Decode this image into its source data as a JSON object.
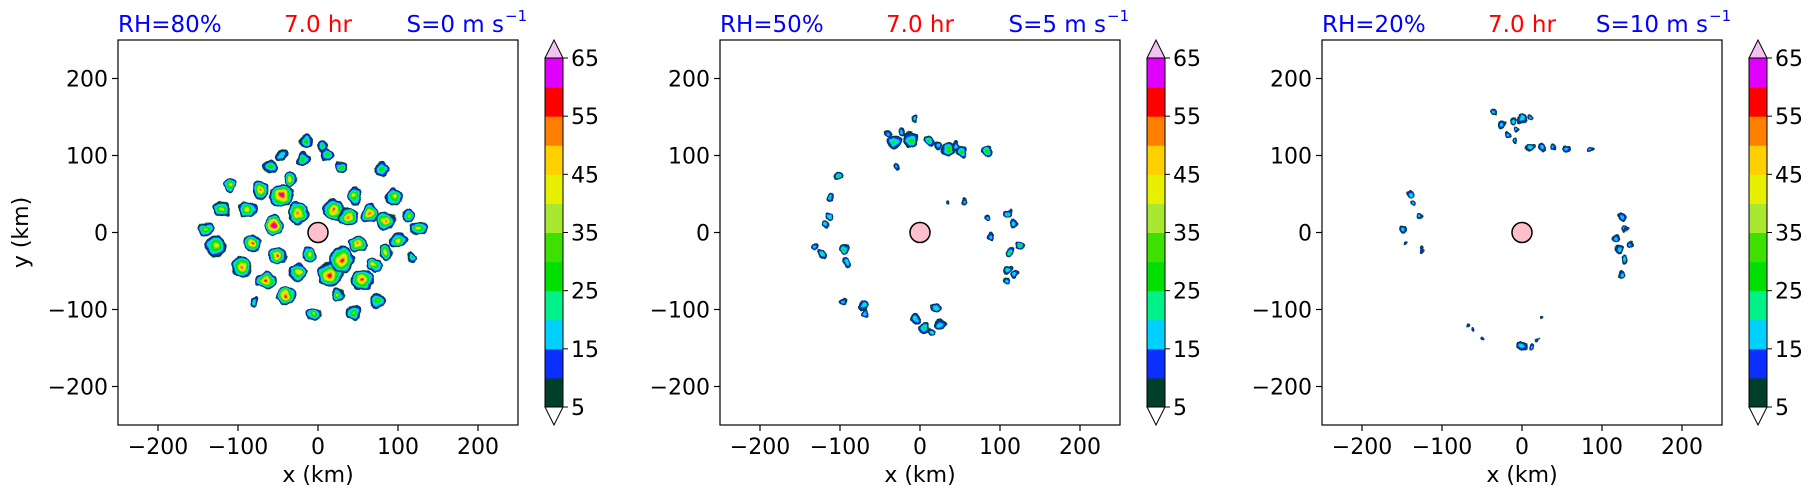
{
  "colorbar": {
    "levels": [
      5,
      10,
      15,
      20,
      25,
      30,
      35,
      40,
      45,
      50,
      55,
      60,
      65,
      70
    ],
    "colors": [
      "#003f2a",
      "#0a2fff",
      "#00d0ff",
      "#00f08a",
      "#00e000",
      "#3ee000",
      "#a8e830",
      "#e6f000",
      "#ffd000",
      "#ff8000",
      "#ff0000",
      "#e000ff",
      "#cc66ff",
      "#f2c2f2"
    ],
    "tick_labels": [
      "5",
      "15",
      "25",
      "35",
      "45",
      "55",
      "65"
    ],
    "extend": "both"
  },
  "chart_data": [
    {
      "type": "contourf",
      "title_left": "RH=80%",
      "title_center": "7.0 hr",
      "title_right": "S=0 m s",
      "title_right_sup": "−1",
      "title_left_color": "#0000ff",
      "title_center_color": "#ff0000",
      "title_right_color": "#0000ff",
      "xlabel": "x (km)",
      "ylabel": "y (km)",
      "xlim": [
        -250,
        250
      ],
      "ylim": [
        -250,
        250
      ],
      "xticks": [
        -200,
        -100,
        0,
        100,
        200
      ],
      "yticks": [
        200,
        100,
        0,
        -100,
        -200
      ],
      "xtick_labels": [
        "−200",
        "−100",
        "0",
        "100",
        "200"
      ],
      "ytick_labels": [
        "200",
        "100",
        "0",
        "−100",
        "−200"
      ],
      "center_marker": {
        "x": 0,
        "y": 0,
        "color": "#ffc0cb"
      },
      "cells": [
        [
          -140,
          5,
          10,
          35
        ],
        [
          -128,
          -18,
          12,
          40
        ],
        [
          -120,
          30,
          10,
          35
        ],
        [
          -110,
          62,
          9,
          40
        ],
        [
          -95,
          -45,
          12,
          50
        ],
        [
          -88,
          30,
          11,
          45
        ],
        [
          -82,
          -15,
          12,
          55
        ],
        [
          -72,
          55,
          11,
          50
        ],
        [
          -65,
          -62,
          12,
          55
        ],
        [
          -60,
          85,
          9,
          30
        ],
        [
          -55,
          10,
          13,
          60
        ],
        [
          -50,
          -30,
          12,
          55
        ],
        [
          -45,
          48,
          14,
          60
        ],
        [
          -40,
          -82,
          12,
          58
        ],
        [
          -35,
          70,
          10,
          45
        ],
        [
          -25,
          25,
          12,
          52
        ],
        [
          -25,
          -52,
          11,
          45
        ],
        [
          -18,
          95,
          9,
          30
        ],
        [
          -10,
          -28,
          9,
          40
        ],
        [
          -5,
          -105,
          9,
          35
        ],
        [
          -15,
          118,
          8,
          28
        ],
        [
          5,
          112,
          8,
          28
        ],
        [
          12,
          100,
          9,
          30
        ],
        [
          15,
          -55,
          14,
          55
        ],
        [
          20,
          30,
          14,
          55
        ],
        [
          25,
          -80,
          10,
          40
        ],
        [
          30,
          -35,
          15,
          58
        ],
        [
          38,
          20,
          12,
          52
        ],
        [
          45,
          -105,
          10,
          35
        ],
        [
          45,
          48,
          10,
          40
        ],
        [
          50,
          -15,
          11,
          50
        ],
        [
          55,
          -62,
          13,
          55
        ],
        [
          65,
          25,
          12,
          52
        ],
        [
          70,
          -42,
          10,
          45
        ],
        [
          75,
          -88,
          9,
          32
        ],
        [
          85,
          15,
          12,
          52
        ],
        [
          85,
          -25,
          10,
          42
        ],
        [
          95,
          45,
          10,
          40
        ],
        [
          100,
          -10,
          11,
          45
        ],
        [
          112,
          22,
          9,
          38
        ],
        [
          118,
          -32,
          7,
          28
        ],
        [
          125,
          5,
          10,
          40
        ],
        [
          80,
          82,
          8,
          28
        ],
        [
          30,
          85,
          8,
          30
        ],
        [
          -80,
          -90,
          7,
          22
        ],
        [
          -45,
          100,
          7,
          22
        ]
      ]
    },
    {
      "type": "contourf",
      "title_left": "RH=50%",
      "title_center": "7.0 hr",
      "title_right": "S=5 m s",
      "title_right_sup": "−1",
      "title_left_color": "#0000ff",
      "title_center_color": "#ff0000",
      "title_right_color": "#0000ff",
      "xlabel": "x (km)",
      "ylabel": "",
      "xlim": [
        -250,
        250
      ],
      "ylim": [
        -250,
        250
      ],
      "xticks": [
        -200,
        -100,
        0,
        100,
        200
      ],
      "yticks": [
        200,
        100,
        0,
        -100,
        -200
      ],
      "xtick_labels": [
        "−200",
        "−100",
        "0",
        "100",
        "200"
      ],
      "ytick_labels": [
        "200",
        "100",
        "0",
        "−100",
        "−200"
      ],
      "center_marker": {
        "x": 0,
        "y": 0,
        "color": "#ffc0cb"
      },
      "cells": [
        [
          -130,
          -20,
          5,
          18
        ],
        [
          -122,
          -28,
          5,
          22
        ],
        [
          -118,
          10,
          5,
          20
        ],
        [
          -112,
          20,
          5,
          22
        ],
        [
          -112,
          45,
          4,
          15
        ],
        [
          -102,
          75,
          6,
          25
        ],
        [
          -95,
          -22,
          7,
          30
        ],
        [
          -92,
          -38,
          5,
          22
        ],
        [
          -95,
          -90,
          5,
          18
        ],
        [
          -70,
          -95,
          6,
          22
        ],
        [
          -68,
          -105,
          5,
          18
        ],
        [
          -40,
          128,
          4,
          15
        ],
        [
          -32,
          118,
          8,
          25
        ],
        [
          -22,
          130,
          5,
          18
        ],
        [
          -8,
          148,
          5,
          20
        ],
        [
          -12,
          120,
          9,
          30
        ],
        [
          -30,
          85,
          4,
          15
        ],
        [
          12,
          118,
          7,
          25
        ],
        [
          22,
          115,
          5,
          18
        ],
        [
          35,
          108,
          9,
          30
        ],
        [
          45,
          112,
          5,
          20
        ],
        [
          52,
          105,
          8,
          28
        ],
        [
          85,
          105,
          8,
          28
        ],
        [
          55,
          40,
          4,
          15
        ],
        [
          35,
          40,
          3,
          12
        ],
        [
          85,
          20,
          5,
          18
        ],
        [
          88,
          -5,
          4,
          15
        ],
        [
          110,
          25,
          6,
          25
        ],
        [
          118,
          12,
          6,
          22
        ],
        [
          112,
          -25,
          6,
          25
        ],
        [
          125,
          -18,
          7,
          28
        ],
        [
          110,
          -48,
          5,
          20
        ],
        [
          108,
          -62,
          5,
          20
        ],
        [
          118,
          -55,
          5,
          20
        ],
        [
          -5,
          -112,
          6,
          22
        ],
        [
          5,
          -125,
          7,
          25
        ],
        [
          15,
          -130,
          6,
          22
        ],
        [
          25,
          -118,
          6,
          20
        ],
        [
          20,
          -98,
          6,
          22
        ]
      ]
    },
    {
      "type": "contourf",
      "title_left": "RH=20%",
      "title_center": "7.0 hr",
      "title_right": "S=10 m s",
      "title_right_sup": "−1",
      "title_left_color": "#0000ff",
      "title_center_color": "#ff0000",
      "title_right_color": "#0000ff",
      "xlabel": "x (km)",
      "ylabel": "",
      "xlim": [
        -250,
        250
      ],
      "ylim": [
        -250,
        250
      ],
      "xticks": [
        -200,
        -100,
        0,
        100,
        200
      ],
      "yticks": [
        200,
        100,
        0,
        -100,
        -200
      ],
      "xtick_labels": [
        "−200",
        "−100",
        "0",
        "100",
        "200"
      ],
      "ytick_labels": [
        "200",
        "100",
        "0",
        "−100",
        "−200"
      ],
      "center_marker": {
        "x": 0,
        "y": 0,
        "color": "#ffc0cb"
      },
      "cells": [
        [
          -35,
          155,
          5,
          18
        ],
        [
          -25,
          140,
          5,
          18
        ],
        [
          -10,
          145,
          5,
          20
        ],
        [
          -5,
          135,
          4,
          15
        ],
        [
          0,
          148,
          5,
          20
        ],
        [
          10,
          150,
          4,
          15
        ],
        [
          -18,
          125,
          5,
          18
        ],
        [
          -8,
          120,
          4,
          15
        ],
        [
          10,
          110,
          6,
          22
        ],
        [
          25,
          110,
          5,
          18
        ],
        [
          40,
          110,
          4,
          15
        ],
        [
          55,
          108,
          5,
          18
        ],
        [
          85,
          108,
          4,
          15
        ],
        [
          -140,
          50,
          5,
          20
        ],
        [
          -135,
          38,
          4,
          15
        ],
        [
          -128,
          20,
          4,
          15
        ],
        [
          -148,
          5,
          5,
          18
        ],
        [
          -145,
          -15,
          3,
          12
        ],
        [
          -125,
          -20,
          3,
          12
        ],
        [
          -125,
          -25,
          3,
          12
        ],
        [
          125,
          20,
          5,
          18
        ],
        [
          128,
          5,
          4,
          15
        ],
        [
          118,
          -8,
          5,
          18
        ],
        [
          122,
          -22,
          5,
          20
        ],
        [
          128,
          -35,
          5,
          20
        ],
        [
          125,
          -55,
          6,
          22
        ],
        [
          135,
          -15,
          4,
          15
        ],
        [
          132,
          5,
          3,
          12
        ],
        [
          -68,
          -120,
          3,
          12
        ],
        [
          -62,
          -128,
          3,
          12
        ],
        [
          -50,
          -138,
          3,
          12
        ],
        [
          0,
          -148,
          6,
          22
        ],
        [
          12,
          -148,
          4,
          15
        ],
        [
          20,
          -140,
          3,
          12
        ],
        [
          25,
          -110,
          2,
          10
        ]
      ]
    }
  ]
}
